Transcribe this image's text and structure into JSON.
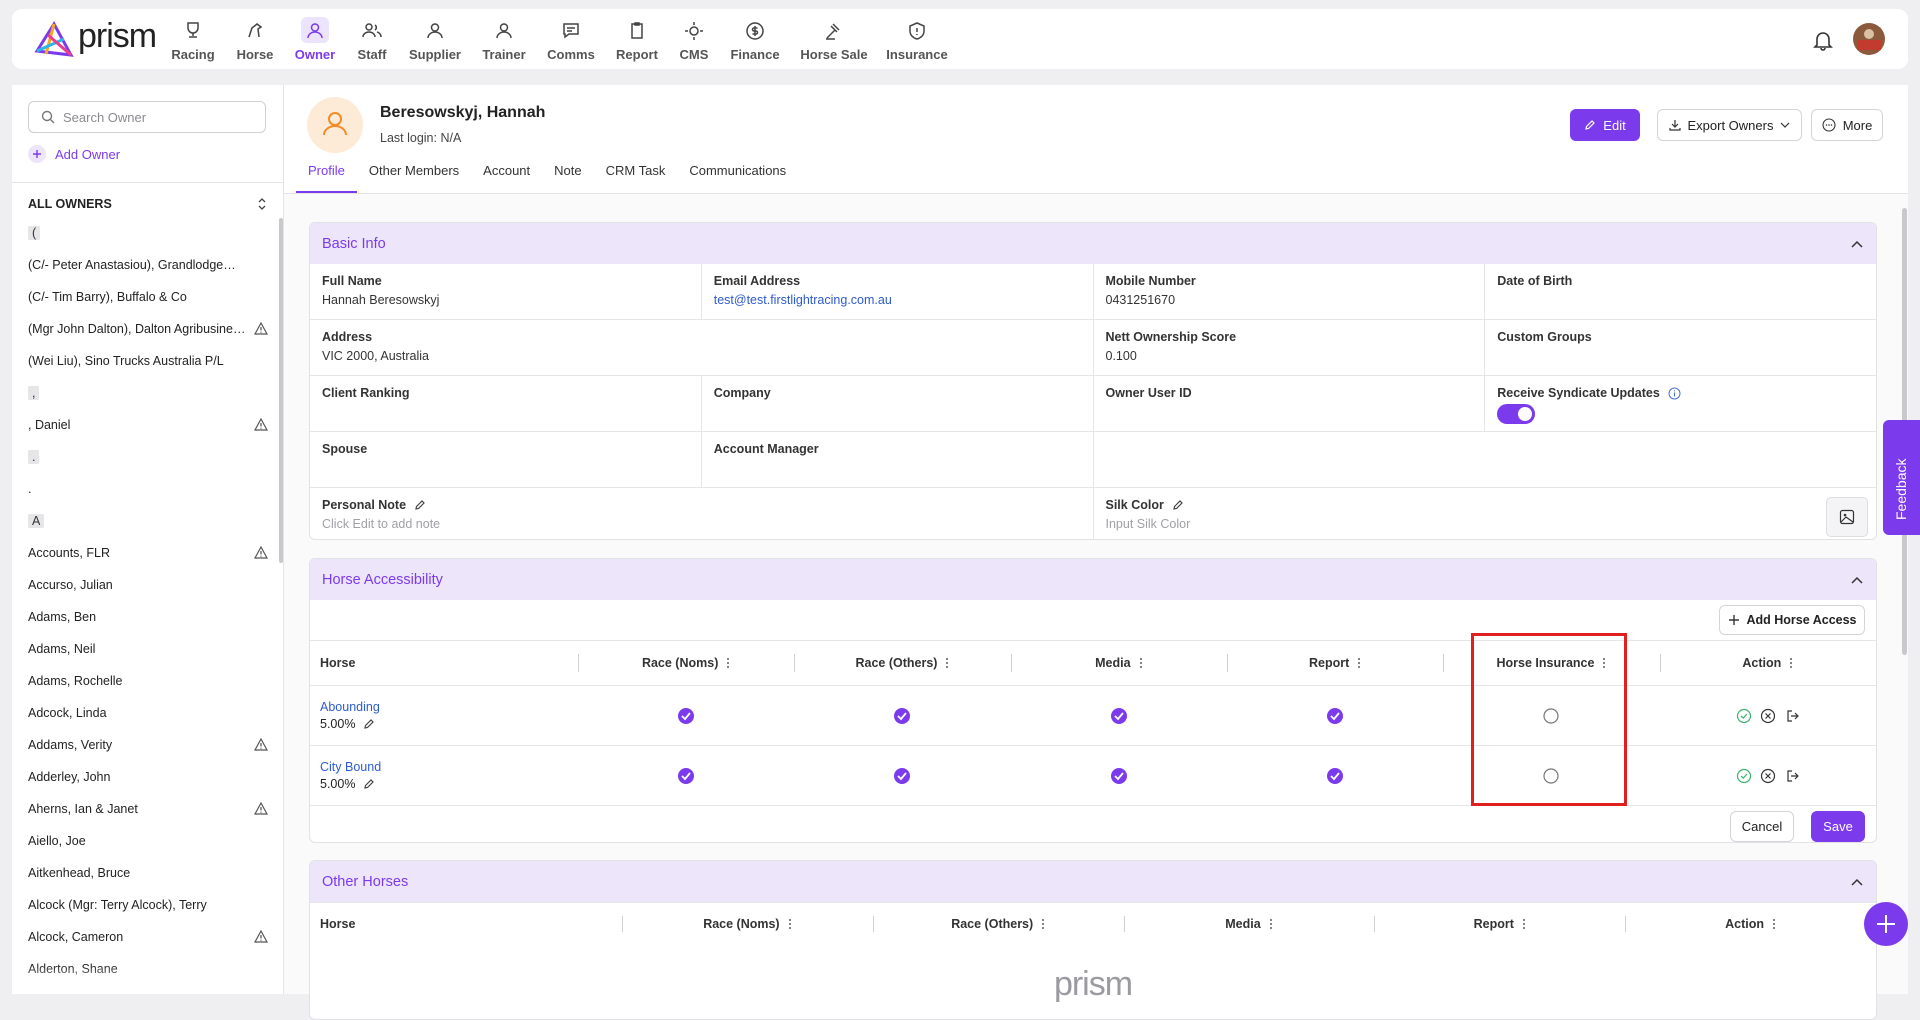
{
  "nav": {
    "logo": "prism",
    "items": [
      "Racing",
      "Horse",
      "Owner",
      "Staff",
      "Supplier",
      "Trainer",
      "Comms",
      "Report",
      "CMS",
      "Finance",
      "Horse Sale",
      "Insurance"
    ],
    "active": 2
  },
  "sidebar": {
    "search_placeholder": "Search Owner",
    "add_label": "Add Owner",
    "list_title": "ALL OWNERS",
    "owners": [
      {
        "text": "(",
        "group": true
      },
      {
        "text": "(C/- Peter Anastasiou), Grandlodge…"
      },
      {
        "text": "(C/- Tim Barry), Buffalo & Co"
      },
      {
        "text": "(Mgr John Dalton), Dalton Agribusine…",
        "warning": true
      },
      {
        "text": "(Wei Liu), Sino Trucks Australia P/L"
      },
      {
        "text": ",",
        "group": true
      },
      {
        "text": ", Daniel",
        "warning": true
      },
      {
        "text": ".",
        "group": true
      },
      {
        "text": "."
      },
      {
        "text": "A",
        "group": true
      },
      {
        "text": "Accounts, FLR",
        "warning": true
      },
      {
        "text": "Accurso, Julian"
      },
      {
        "text": "Adams, Ben"
      },
      {
        "text": "Adams, Neil"
      },
      {
        "text": "Adams, Rochelle"
      },
      {
        "text": "Adcock, Linda"
      },
      {
        "text": "Addams, Verity",
        "warning": true
      },
      {
        "text": "Adderley, John"
      },
      {
        "text": "Aherns, Ian & Janet",
        "warning": true
      },
      {
        "text": "Aiello, Joe"
      },
      {
        "text": "Aitkenhead, Bruce"
      },
      {
        "text": "Alcock (Mgr: Terry Alcock), Terry"
      },
      {
        "text": "Alcock, Cameron",
        "warning": true
      },
      {
        "text": "Alderton, Shane"
      }
    ]
  },
  "profile": {
    "name": "Beresowskyj, Hannah",
    "last_login": "Last login: N/A",
    "actions": [
      "Edit",
      "Export Owners",
      "More"
    ],
    "tabs": [
      "Profile",
      "Other Members",
      "Account",
      "Note",
      "CRM Task",
      "Communications"
    ],
    "active_tab": 0
  },
  "basic_info": {
    "title": "Basic Info",
    "fields": [
      {
        "label": "Full Name",
        "value": "Hannah Beresowskyj"
      },
      {
        "label": "Email Address",
        "value": "test@test.firstlightracing.com.au",
        "link": true
      },
      {
        "label": "Mobile Number",
        "value": "0431251670"
      },
      {
        "label": "Date of Birth"
      },
      {
        "label": "Address",
        "value": "VIC 2000, Australia"
      },
      {
        "label": "Nett Ownership Score",
        "value": "0.100"
      },
      {
        "label": "Custom Groups"
      },
      {
        "label": "Client Ranking"
      },
      {
        "label": "Company"
      },
      {
        "label": "Owner User ID"
      },
      {
        "label": "Receive Syndicate Updates",
        "enabled": true
      },
      {
        "label": "Spouse"
      },
      {
        "label": "Account Manager"
      },
      {
        "label": "Personal Note",
        "hint": "Click Edit to add note"
      },
      {
        "label": "Silk Color",
        "hint": "Input Silk Color"
      }
    ]
  },
  "horse_access": {
    "title": "Horse Accessibility",
    "add_button": "Add Horse Access",
    "columns": [
      "Horse",
      "Race (Noms)",
      "Race (Others)",
      "Media",
      "Report",
      "Horse Insurance",
      "Action"
    ],
    "rows": [
      {
        "horse": "Abounding",
        "share": "5.00%",
        "access": [
          true,
          true,
          true,
          true,
          false
        ]
      },
      {
        "horse": "City Bound",
        "share": "5.00%",
        "access": [
          true,
          true,
          true,
          true,
          false
        ]
      }
    ],
    "cancel": "Cancel",
    "save": "Save"
  },
  "other_horses": {
    "title": "Other Horses",
    "columns": [
      "Horse",
      "Race (Noms)",
      "Race (Others)",
      "Media",
      "Report",
      "Action"
    ],
    "watermark": "prism"
  },
  "feedback": "Feedback"
}
